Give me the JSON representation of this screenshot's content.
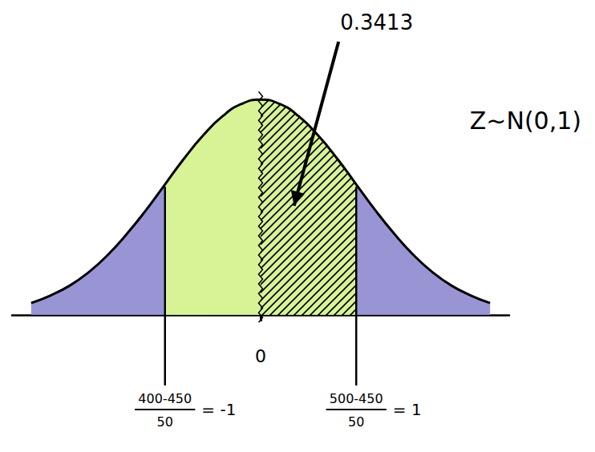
{
  "chart_data": {
    "type": "line",
    "title": "Z~N(0,1)",
    "x": [
      -2.4,
      -2.2,
      -2.0,
      -1.8,
      -1.6,
      -1.4,
      -1.2,
      -1.0,
      -0.8,
      -0.6,
      -0.4,
      -0.2,
      0,
      0.2,
      0.4,
      0.6,
      0.8,
      1.0,
      1.2,
      1.4,
      1.6,
      1.8,
      2.0,
      2.2,
      2.4
    ],
    "values": [
      0.022,
      0.036,
      0.054,
      0.079,
      0.111,
      0.15,
      0.194,
      0.242,
      0.29,
      0.333,
      0.368,
      0.391,
      0.399,
      0.391,
      0.368,
      0.333,
      0.29,
      0.242,
      0.194,
      0.15,
      0.111,
      0.079,
      0.054,
      0.036,
      0.022
    ],
    "color": "#000000",
    "xlim": [
      -2.6,
      2.6
    ],
    "ylim": [
      0,
      0.45
    ],
    "xticks": [
      0
    ],
    "tick_labels": "x",
    "grid": false,
    "regions": [
      {
        "from": -2.4,
        "to": -1.0,
        "color": "#8e8ad0"
      },
      {
        "from": 1.0,
        "to": 2.4,
        "color": "#8e8ad0"
      },
      {
        "from": -1.0,
        "to": 1.0,
        "color": "#d4f28b"
      },
      {
        "from": 0,
        "to": 1.0,
        "color": "#000000",
        "line_style": "hatched",
        "label": "0.3413"
      }
    ],
    "vlines": [
      {
        "x": 0,
        "line_style": "wavy"
      },
      {
        "x": -1,
        "numerator": "400-450",
        "denominator": "50"
      },
      {
        "x": 1,
        "numerator": "500-450",
        "denominator": "50"
      }
    ]
  }
}
